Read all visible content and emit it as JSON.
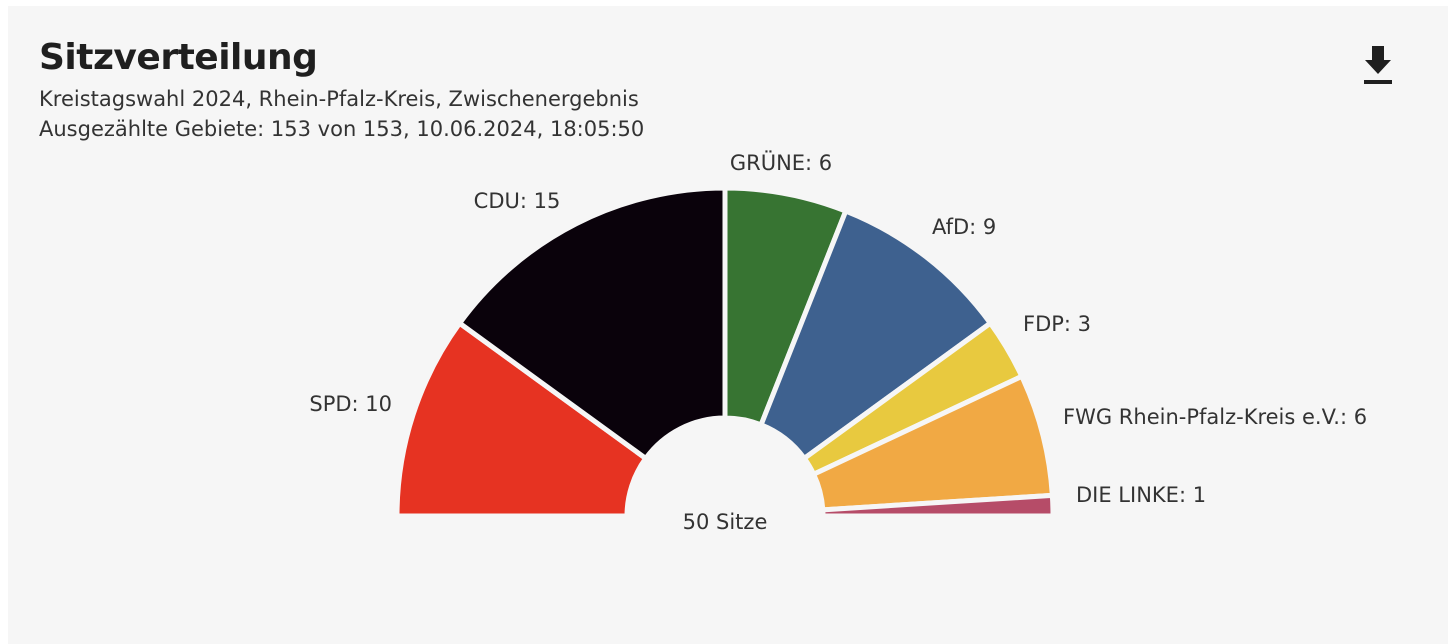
{
  "header": {
    "title": "Sitzverteilung",
    "subtitle": "Kreistagswahl 2024, Rhein-Pfalz-Kreis, Zwischenergebnis",
    "status": "Ausgezählte Gebiete: 153 von 153, 10.06.2024, 18:05:50",
    "download_icon": "download-icon"
  },
  "chart_data": {
    "type": "pie",
    "variant": "semicircle-parliament",
    "center_label": "50 Sitze",
    "total": 50,
    "slices": [
      {
        "name": "SPD",
        "label": "SPD: 10",
        "value": 10,
        "color": "#e63322"
      },
      {
        "name": "CDU",
        "label": "CDU: 15",
        "value": 15,
        "color": "#0a020b"
      },
      {
        "name": "GRÜNE",
        "label": "GRÜNE: 6",
        "value": 6,
        "color": "#377432"
      },
      {
        "name": "AfD",
        "label": "AfD: 9",
        "value": 9,
        "color": "#3e618f"
      },
      {
        "name": "FDP",
        "label": "FDP: 3",
        "value": 3,
        "color": "#e8c93f"
      },
      {
        "name": "FWG Rhein-Pfalz-Kreis e.V.",
        "label": "FWG Rhein-Pfalz-Kreis e.V.: 6",
        "value": 6,
        "color": "#f1a944"
      },
      {
        "name": "DIE LINKE",
        "label": "DIE LINKE: 1",
        "value": 1,
        "color": "#b64c68"
      }
    ]
  }
}
